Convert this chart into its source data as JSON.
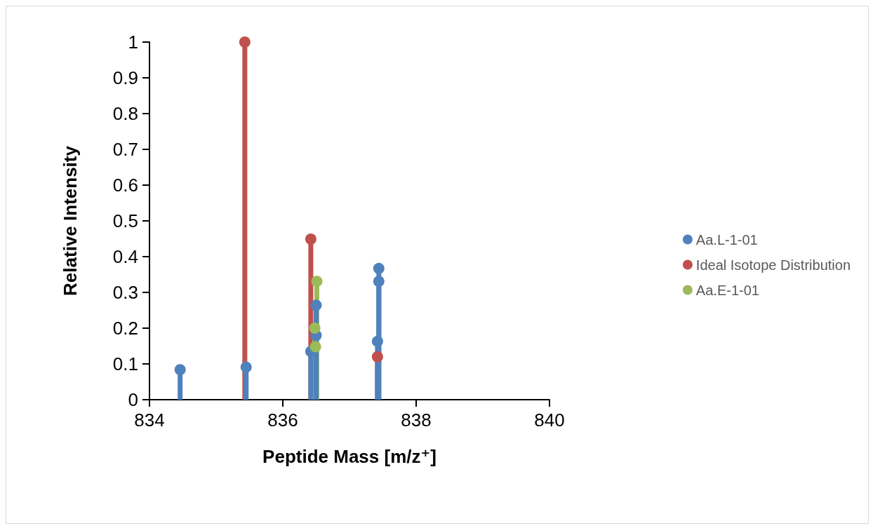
{
  "chart_data": {
    "type": "lollipop",
    "xlabel": "Peptide Mass [m/z⁺]",
    "ylabel": "Relative Intensity",
    "xlim": [
      834,
      840
    ],
    "xticks": [
      834,
      836,
      838,
      840
    ],
    "ylim": [
      0,
      1
    ],
    "yticks": [
      0,
      0.1,
      0.2,
      0.3,
      0.4,
      0.5,
      0.6,
      0.7,
      0.8,
      0.9,
      1
    ],
    "grid": false,
    "legend": "right",
    "marker": "circle",
    "series": [
      {
        "name": "Aa.L-1-01",
        "color": "#4f81bd",
        "x": [
          834.46,
          835.45,
          836.42,
          836.5,
          836.5,
          837.42,
          837.44,
          837.44
        ],
        "values": [
          0.084,
          0.091,
          0.135,
          0.18,
          0.264,
          0.163,
          0.331,
          0.367
        ]
      },
      {
        "name": "Ideal Isotope Distribution",
        "color": "#c0504d",
        "x": [
          835.43,
          836.42,
          837.42
        ],
        "values": [
          1.0,
          0.449,
          0.12
        ]
      },
      {
        "name": "Aa.E-1-01",
        "color": "#9bbb59",
        "x": [
          836.49,
          836.48,
          836.51
        ],
        "values": [
          0.148,
          0.2,
          0.331
        ]
      }
    ]
  }
}
